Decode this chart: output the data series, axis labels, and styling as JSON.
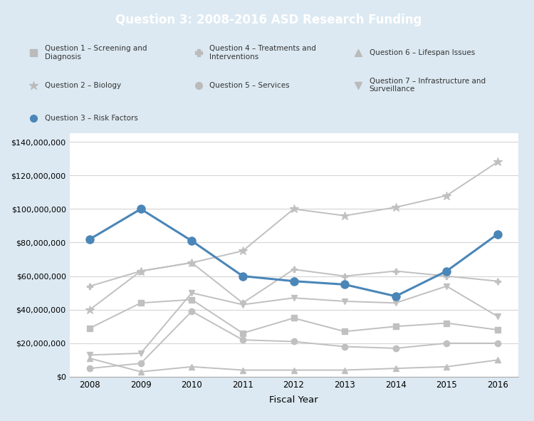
{
  "title": "Question 3: 2008-2016 ASD Research Funding",
  "xlabel": "Fiscal Year",
  "years": [
    2008,
    2009,
    2010,
    2011,
    2012,
    2013,
    2014,
    2015,
    2016
  ],
  "series": {
    "Q1_Screening": [
      29000000,
      44000000,
      46000000,
      26000000,
      35000000,
      27000000,
      30000000,
      32000000,
      28000000
    ],
    "Q2_Biology": [
      40000000,
      63000000,
      68000000,
      75000000,
      100000000,
      96000000,
      101000000,
      108000000,
      128000000
    ],
    "Q3_RiskFactors": [
      82000000,
      100000000,
      81000000,
      60000000,
      57000000,
      55000000,
      48000000,
      63000000,
      85000000
    ],
    "Q4_Treatments": [
      54000000,
      63000000,
      68000000,
      44000000,
      64000000,
      60000000,
      63000000,
      60000000,
      57000000
    ],
    "Q5_Services": [
      5000000,
      8000000,
      39000000,
      22000000,
      21000000,
      18000000,
      17000000,
      20000000,
      20000000
    ],
    "Q6_Lifespan": [
      11000000,
      3000000,
      6000000,
      4000000,
      4000000,
      4000000,
      5000000,
      6000000,
      10000000
    ],
    "Q7_Infrastructure": [
      13000000,
      14000000,
      50000000,
      43000000,
      47000000,
      45000000,
      44000000,
      54000000,
      36000000
    ]
  },
  "highlight_color": "#4a86b8",
  "gray_color": "#bbbbbb",
  "gray_line_color": "#c0c0c0",
  "title_bg_color": "#3a7ca8",
  "title_text_color": "#ffffff",
  "plot_bg_color": "#ffffff",
  "outer_bg_color": "#dce9f2",
  "ylim": [
    0,
    145000000
  ],
  "yticks": [
    0,
    20000000,
    40000000,
    60000000,
    80000000,
    100000000,
    120000000,
    140000000
  ],
  "legend": [
    {
      "label": "Question 1 – Screening and\nDiagnosis",
      "color": "#bbbbbb",
      "marker": "s",
      "is_highlight": false
    },
    {
      "label": "Question 4 – Treatments and\nInterventions",
      "color": "#bbbbbb",
      "marker": "P",
      "is_highlight": false
    },
    {
      "label": "Question 6 – Lifespan Issues",
      "color": "#bbbbbb",
      "marker": "^",
      "is_highlight": false
    },
    {
      "label": "Question 2 – Biology",
      "color": "#bbbbbb",
      "marker": "*",
      "is_highlight": false
    },
    {
      "label": "Question 5 – Services",
      "color": "#bbbbbb",
      "marker": "o",
      "is_highlight": false
    },
    {
      "label": "Question 7 – Infrastructure and\nSurveillance",
      "color": "#bbbbbb",
      "marker": "v",
      "is_highlight": false
    },
    {
      "label": "Question 3 – Risk Factors",
      "color": "#4a86b8",
      "marker": "o",
      "is_highlight": true
    }
  ]
}
